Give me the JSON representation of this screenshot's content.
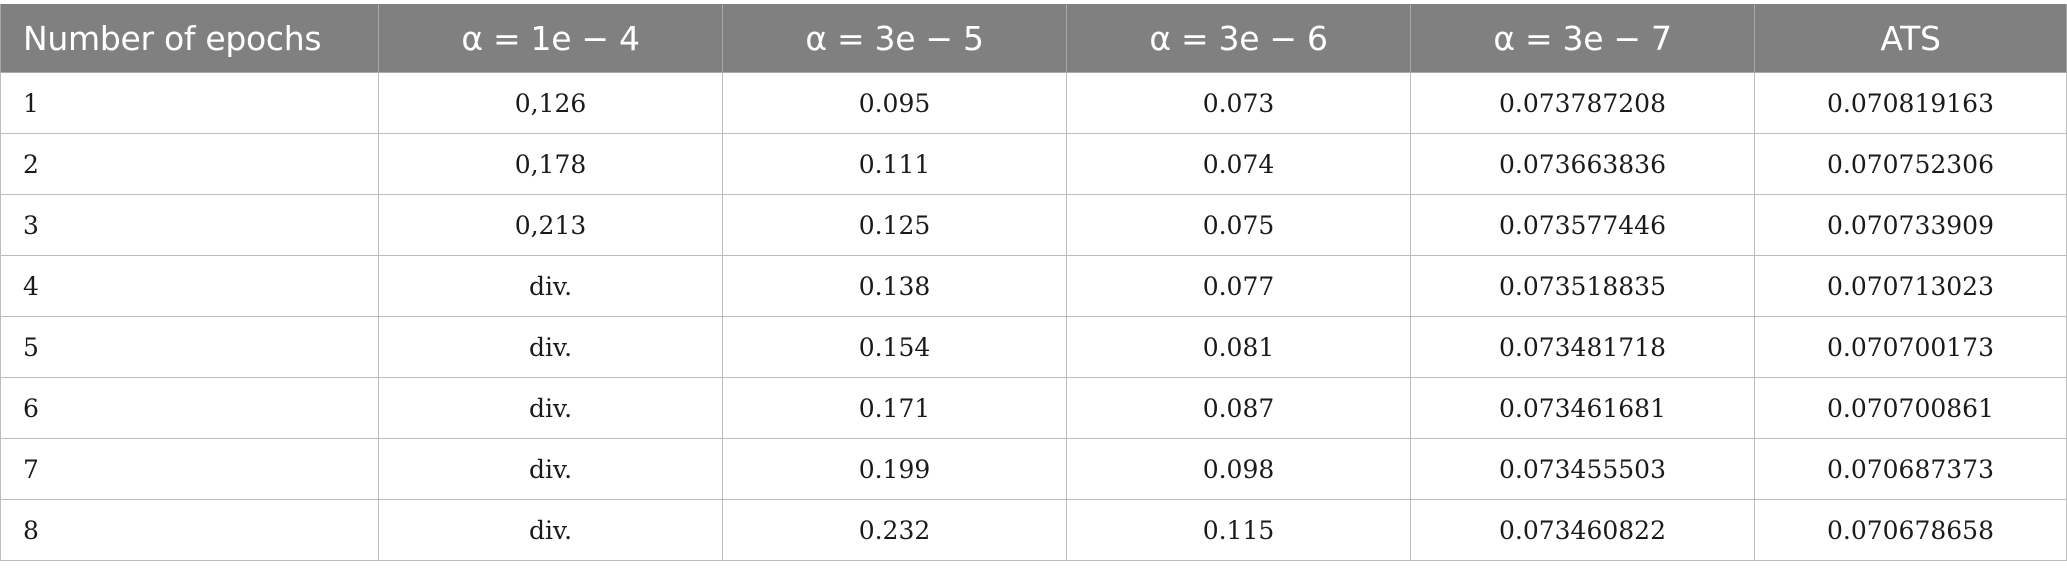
{
  "table": {
    "headers": [
      "Number of epochs",
      "α = 1e − 4",
      "α = 3e − 5",
      "α = 3e − 6",
      "α = 3e − 7",
      "ATS"
    ],
    "rows": [
      [
        "1",
        "0,126",
        "0.095",
        "0.073",
        "0.073787208",
        "0.070819163"
      ],
      [
        "2",
        "0,178",
        "0.111",
        "0.074",
        "0.073663836",
        "0.070752306"
      ],
      [
        "3",
        "0,213",
        "0.125",
        "0.075",
        "0.073577446",
        "0.070733909"
      ],
      [
        "4",
        "div.",
        "0.138",
        "0.077",
        "0.073518835",
        "0.070713023"
      ],
      [
        "5",
        "div.",
        "0.154",
        "0.081",
        "0.073481718",
        "0.070700173"
      ],
      [
        "6",
        "div.",
        "0.171",
        "0.087",
        "0.073461681",
        "0.070700861"
      ],
      [
        "7",
        "div.",
        "0.199",
        "0.098",
        "0.073455503",
        "0.070687373"
      ],
      [
        "8",
        "div.",
        "0.232",
        "0.115",
        "0.073460822",
        "0.070678658"
      ]
    ]
  },
  "colors": {
    "header_background": "#808080",
    "header_text": "#ffffff",
    "cell_text": "#1a1a1a",
    "grid_lines": "#bdbdbd"
  }
}
